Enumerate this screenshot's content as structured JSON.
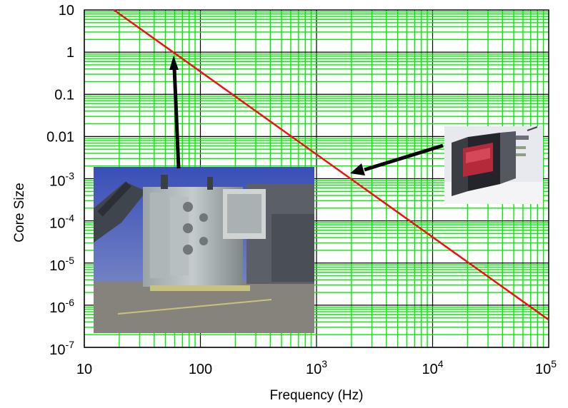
{
  "chart_data": {
    "type": "line",
    "xlabel": "Frequency (Hz)",
    "ylabel": "Core Size",
    "xscale": "log",
    "yscale": "log",
    "xlim": [
      10,
      100000
    ],
    "ylim": [
      1e-07,
      10
    ],
    "grid": true,
    "grid_color": "#00ee00",
    "line_color": "#ee1111",
    "x_ticks": [
      {
        "value": 10,
        "base": "10",
        "exp": ""
      },
      {
        "value": 100,
        "base": "100",
        "exp": ""
      },
      {
        "value": 1000,
        "base": "10",
        "exp": "3"
      },
      {
        "value": 10000,
        "base": "10",
        "exp": "4"
      },
      {
        "value": 100000,
        "base": "10",
        "exp": "5"
      }
    ],
    "y_ticks": [
      {
        "value": 10,
        "base": "10",
        "exp": ""
      },
      {
        "value": 1,
        "base": "1",
        "exp": ""
      },
      {
        "value": 0.1,
        "base": "0.1",
        "exp": ""
      },
      {
        "value": 0.01,
        "base": "0.01",
        "exp": ""
      },
      {
        "value": 0.001,
        "base": "10",
        "exp": "-3"
      },
      {
        "value": 0.0001,
        "base": "10",
        "exp": "-4"
      },
      {
        "value": 1e-05,
        "base": "10",
        "exp": "-5"
      },
      {
        "value": 1e-06,
        "base": "10",
        "exp": "-6"
      },
      {
        "value": 1e-07,
        "base": "10",
        "exp": "-7"
      }
    ],
    "series": [
      {
        "x": [
          18,
          100000
        ],
        "y": [
          10,
          4.5e-07
        ]
      }
    ],
    "annotations": [
      {
        "type": "photo",
        "subject": "power-transformer",
        "points_to": {
          "x": 60,
          "y": 1
        }
      },
      {
        "type": "photo",
        "subject": "small-transformer-core",
        "points_to": {
          "x": 1800,
          "y": 0.001
        }
      }
    ]
  }
}
